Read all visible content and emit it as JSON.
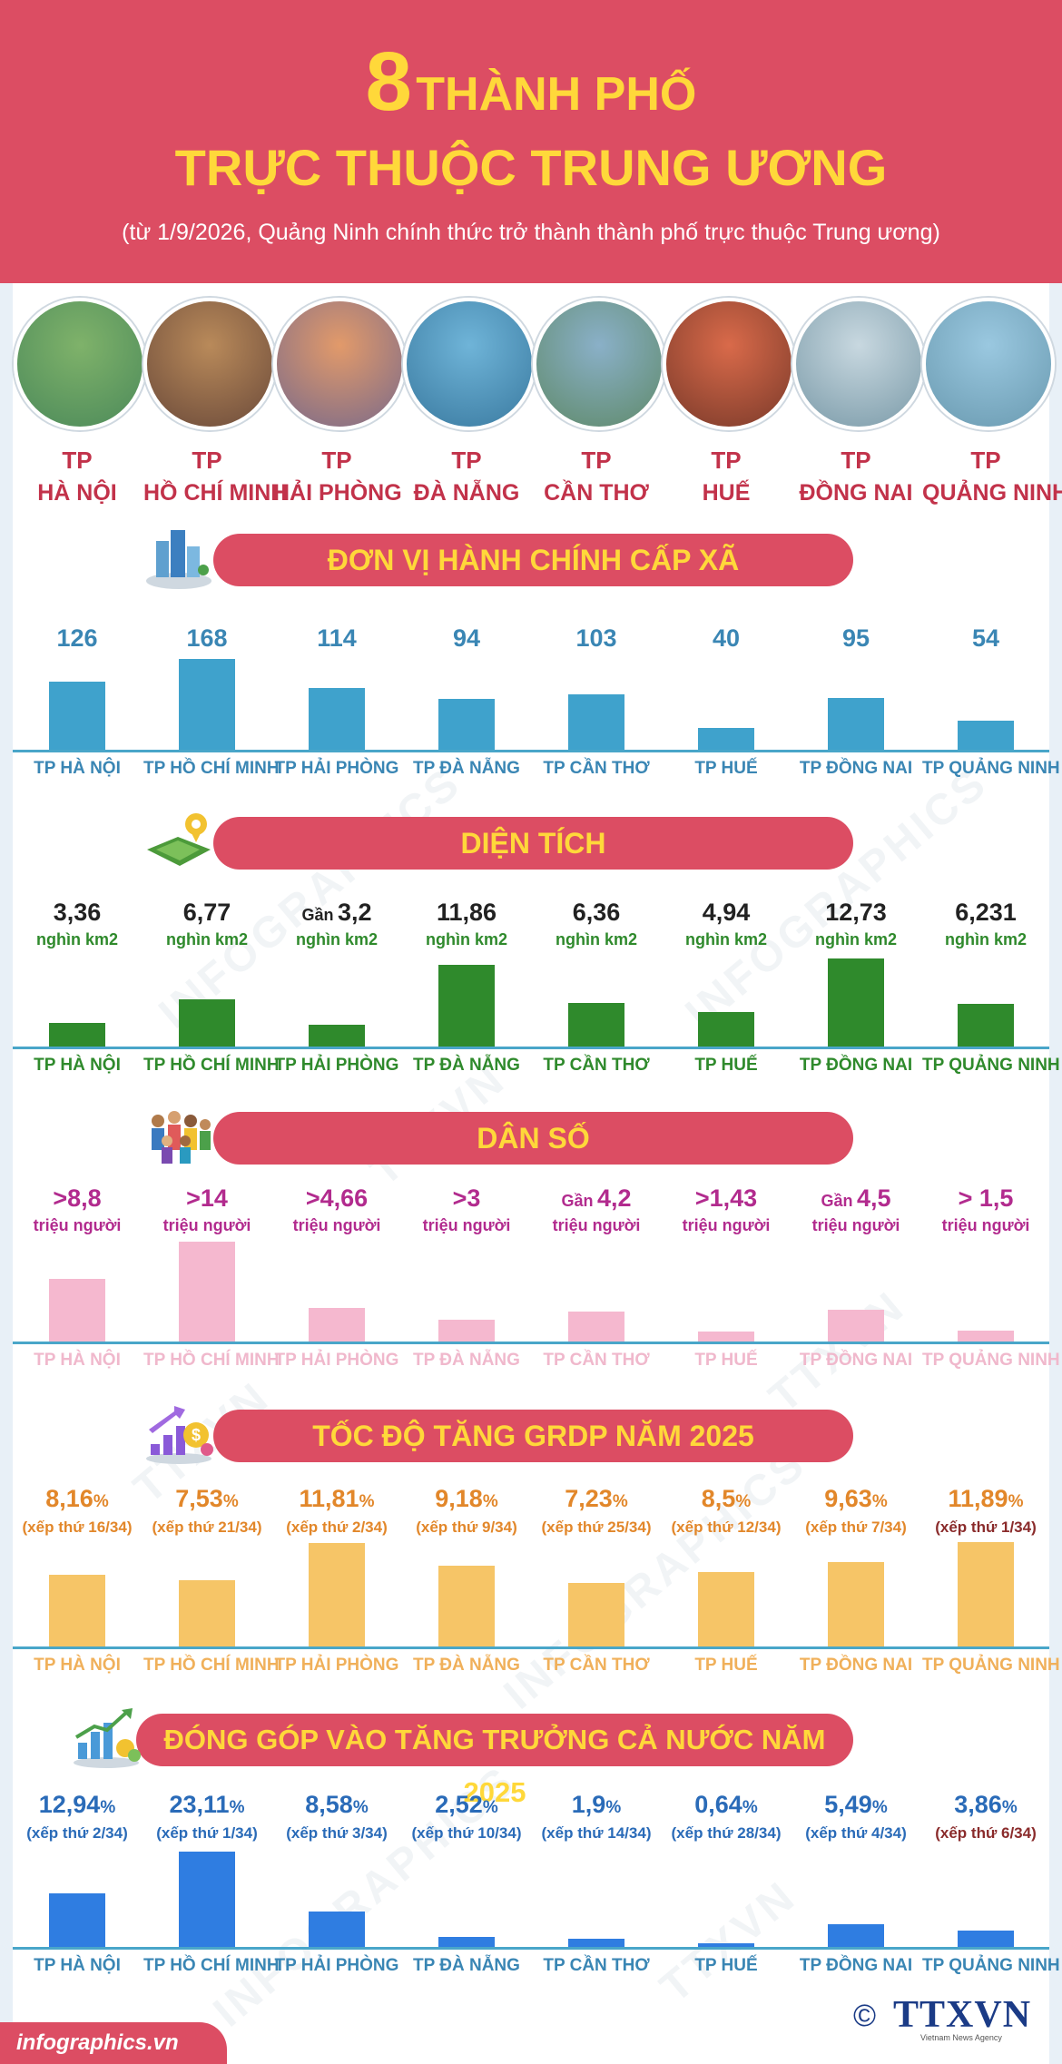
{
  "header": {
    "big_number": "8",
    "line1": "THÀNH PHỐ",
    "line2": "TRỰC THUỘC TRUNG ƯƠNG",
    "subtitle": "(từ 1/9/2026, Quảng Ninh chính thức trở thành thành phố trực thuộc Trung ương)"
  },
  "cities": [
    {
      "tp": "TP",
      "name": "HÀ NỘI",
      "label": "TP HÀ NỘI"
    },
    {
      "tp": "TP",
      "name": "HỒ CHÍ MINH",
      "label": "TP HỒ CHÍ MINH"
    },
    {
      "tp": "TP",
      "name": "HẢI PHÒNG",
      "label": "TP HẢI PHÒNG"
    },
    {
      "tp": "TP",
      "name": "ĐÀ NẴNG",
      "label": "TP ĐÀ NẴNG"
    },
    {
      "tp": "TP",
      "name": "CẦN THƠ",
      "label": "TP CẦN THƠ"
    },
    {
      "tp": "TP",
      "name": "HUẾ",
      "label": "TP HUẾ"
    },
    {
      "tp": "TP",
      "name": "ĐỒNG NAI",
      "label": "TP ĐỒNG NAI"
    },
    {
      "tp": "TP",
      "name": "QUẢNG NINH",
      "label": "TP QUẢNG NINH"
    }
  ],
  "colors": {
    "header": "#dc4d63",
    "title": "#ffd83a",
    "wards": "#3fa2cc",
    "area": "#2f8a2c",
    "population": "#f5b8cf",
    "grdp": "#f6c567",
    "contribution": "#2f7de1",
    "axis": "#49a6c9"
  },
  "chart_data": [
    {
      "type": "bar",
      "title": "ĐƠN VỊ HÀNH CHÍNH CẤP XÃ",
      "icon": "city-buildings-icon",
      "categories": [
        "TP HÀ NỘI",
        "TP HỒ CHÍ MINH",
        "TP HẢI PHÒNG",
        "TP ĐÀ NẴNG",
        "TP CẦN THƠ",
        "TP HUẾ",
        "TP ĐỒNG NAI",
        "TP QUẢNG NINH"
      ],
      "values": [
        126,
        168,
        114,
        94,
        103,
        40,
        95,
        54
      ],
      "labels": [
        "126",
        "168",
        "114",
        "94",
        "103",
        "40",
        "95",
        "54"
      ]
    },
    {
      "type": "bar",
      "title": "DIỆN TÍCH",
      "icon": "land-map-icon",
      "unit": "nghìn km2",
      "categories": [
        "TP HÀ NỘI",
        "TP HỒ CHÍ MINH",
        "TP HẢI PHÒNG",
        "TP ĐÀ NẴNG",
        "TP CẦN THƠ",
        "TP HUẾ",
        "TP ĐỒNG NAI",
        "TP QUẢNG NINH"
      ],
      "values": [
        3.36,
        6.77,
        3.2,
        11.86,
        6.36,
        4.94,
        12.73,
        6.231
      ],
      "prefixes": [
        "",
        "",
        "Gần",
        "",
        "",
        "",
        "",
        ""
      ],
      "labels": [
        "3,36",
        "6,77",
        "3,2",
        "11,86",
        "6,36",
        "4,94",
        "12,73",
        "6,231"
      ]
    },
    {
      "type": "bar",
      "title": "DÂN SỐ",
      "icon": "people-group-icon",
      "unit": "triệu người",
      "categories": [
        "TP HÀ NỘI",
        "TP HỒ CHÍ MINH",
        "TP HẢI PHÒNG",
        "TP ĐÀ NẴNG",
        "TP CẦN THƠ",
        "TP HUẾ",
        "TP ĐỒNG NAI",
        "TP QUẢNG NINH"
      ],
      "values": [
        8.8,
        14,
        4.66,
        3,
        4.2,
        1.43,
        4.5,
        1.5
      ],
      "prefixes": [
        "",
        "",
        "",
        "",
        "Gần",
        "",
        "Gần",
        ""
      ],
      "labels": [
        ">8,8",
        ">14",
        ">4,66",
        ">3",
        "4,2",
        ">1,43",
        "4,5",
        "> 1,5"
      ]
    },
    {
      "type": "bar",
      "title": "TỐC ĐỘ TĂNG GRDP NĂM 2025",
      "icon": "growth-money-icon",
      "categories": [
        "TP HÀ NỘI",
        "TP HỒ CHÍ MINH",
        "TP HẢI PHÒNG",
        "TP ĐÀ NẴNG",
        "TP CẦN THƠ",
        "TP HUẾ",
        "TP ĐỒNG NAI",
        "TP QUẢNG NINH"
      ],
      "values": [
        8.16,
        7.53,
        11.81,
        9.18,
        7.23,
        8.5,
        9.63,
        11.89
      ],
      "labels": [
        "8,16",
        "7,53",
        "11,81",
        "9,18",
        "7,23",
        "8,5",
        "9,63",
        "11,89"
      ],
      "suffix": "%",
      "ranks": [
        "(xếp thứ 16/34)",
        "(xếp thứ 21/34)",
        "(xếp thứ 2/34)",
        "(xếp thứ 9/34)",
        "(xếp thứ 25/34)",
        "(xếp thứ 12/34)",
        "(xếp thứ 7/34)",
        "(xếp thứ 1/34)"
      ]
    },
    {
      "type": "bar",
      "title": "ĐÓNG GÓP VÀO TĂNG TRƯỞNG CẢ NƯỚC NĂM 2025",
      "icon": "growth-chart-icon",
      "categories": [
        "TP HÀ NỘI",
        "TP HỒ CHÍ MINH",
        "TP HẢI PHÒNG",
        "TP ĐÀ NẴNG",
        "TP CẦN THƠ",
        "TP HUẾ",
        "TP ĐỒNG NAI",
        "TP QUẢNG NINH"
      ],
      "values": [
        12.94,
        23.11,
        8.58,
        2.52,
        1.9,
        0.64,
        5.49,
        3.86
      ],
      "labels": [
        "12,94",
        "23,11",
        "8,58",
        "2,52",
        "1,9",
        "0,64",
        "5,49",
        "3,86"
      ],
      "suffix": "%",
      "ranks": [
        "(xếp thứ 2/34)",
        "(xếp thứ 1/34)",
        "(xếp thứ 3/34)",
        "(xếp thứ 10/34)",
        "(xếp thứ 14/34)",
        "(xếp thứ 28/34)",
        "(xếp thứ 4/34)",
        "(xếp thứ 6/34)"
      ]
    }
  ],
  "footer": {
    "site": "infographics.vn",
    "copyright_symbol": "©",
    "agency_logo": "TTXVN",
    "agency_sub": "Vietnam News Agency"
  }
}
